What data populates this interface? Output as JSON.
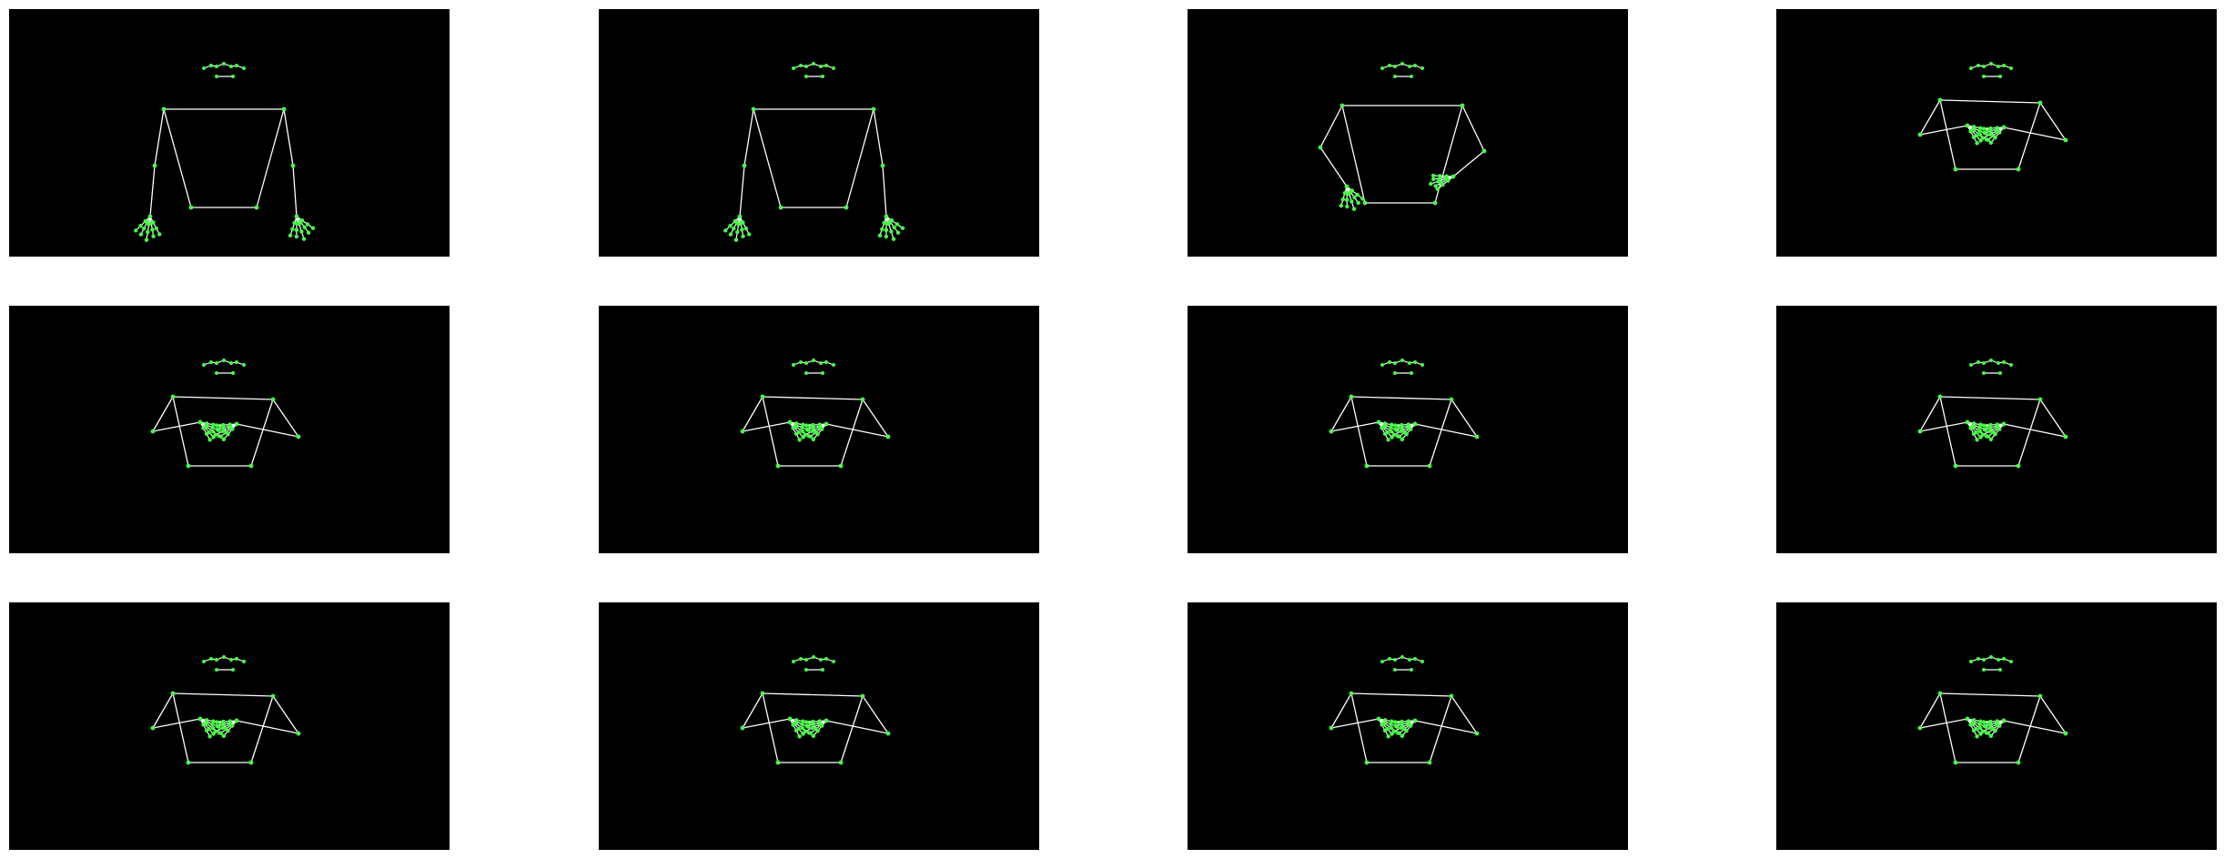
{
  "grid": {
    "rows": 3,
    "cols": 4
  },
  "colors": {
    "background": "#ffffff",
    "frame": "#000000",
    "bone": "#ffffff",
    "joint": "#44ff44"
  },
  "frames": [
    {
      "pose": "rest"
    },
    {
      "pose": "rest"
    },
    {
      "pose": "raise"
    },
    {
      "pose": "cross"
    },
    {
      "pose": "cross"
    },
    {
      "pose": "cross"
    },
    {
      "pose": "cross"
    },
    {
      "pose": "cross"
    },
    {
      "pose": "cross"
    },
    {
      "pose": "cross"
    },
    {
      "pose": "cross"
    },
    {
      "pose": "cross"
    }
  ]
}
